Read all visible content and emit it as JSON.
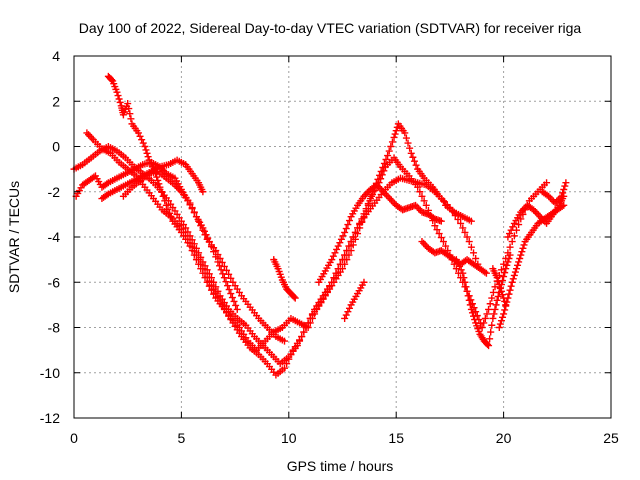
{
  "chart_data": {
    "type": "scatter",
    "title": "Day 100 of 2022, Sidereal Day-to-day VTEC variation (SDTVAR) for receiver riga",
    "xlabel": "GPS time / hours",
    "ylabel": "SDTVAR / TECUs",
    "xlim": [
      0,
      25
    ],
    "ylim": [
      -12,
      4
    ],
    "xticks": [
      0,
      5,
      10,
      15,
      20,
      25
    ],
    "yticks": [
      -12,
      -10,
      -8,
      -6,
      -4,
      -2,
      0,
      2,
      4
    ],
    "grid": true,
    "legend": "none",
    "marker": "plus",
    "color": "#ff0000",
    "series": [
      {
        "values": [
          [
            1.6,
            3.1
          ],
          [
            1.8,
            2.9
          ],
          [
            2.0,
            2.4
          ],
          [
            2.2,
            1.8
          ],
          [
            2.3,
            1.4
          ],
          [
            2.5,
            1.9
          ],
          [
            2.7,
            1.0
          ],
          [
            3.0,
            0.6
          ],
          [
            3.3,
            0.0
          ],
          [
            3.5,
            -0.6
          ],
          [
            3.8,
            -1.2
          ],
          [
            4.0,
            -1.8
          ],
          [
            4.3,
            -2.6
          ],
          [
            4.6,
            -3.3
          ],
          [
            5.0,
            -3.8
          ],
          [
            5.4,
            -4.4
          ],
          [
            5.8,
            -5.2
          ],
          [
            6.2,
            -6.0
          ],
          [
            6.6,
            -6.7
          ],
          [
            7.0,
            -7.2
          ],
          [
            7.4,
            -7.8
          ],
          [
            7.8,
            -8.4
          ],
          [
            8.2,
            -8.9
          ],
          [
            8.6,
            -9.2
          ],
          [
            9.0,
            -9.6
          ],
          [
            9.4,
            -10.1
          ],
          [
            9.8,
            -9.8
          ],
          [
            10.2,
            -9.0
          ],
          [
            10.6,
            -8.4
          ],
          [
            11.0,
            -7.6
          ],
          [
            11.4,
            -7.0
          ],
          [
            11.8,
            -6.4
          ],
          [
            12.2,
            -5.6
          ],
          [
            12.6,
            -4.8
          ],
          [
            13.0,
            -4.0
          ],
          [
            13.4,
            -3.2
          ],
          [
            13.8,
            -2.3
          ],
          [
            14.2,
            -1.6
          ],
          [
            14.5,
            -0.9
          ],
          [
            14.9,
            -0.5
          ],
          [
            15.2,
            -0.9
          ],
          [
            15.6,
            -1.3
          ],
          [
            16.0,
            -1.8
          ],
          [
            16.4,
            -2.6
          ],
          [
            16.8,
            -3.5
          ],
          [
            17.2,
            -4.2
          ],
          [
            17.6,
            -5.0
          ],
          [
            18.0,
            -5.8
          ],
          [
            18.4,
            -6.6
          ],
          [
            18.7,
            -7.3
          ],
          [
            19.0,
            -8.0
          ],
          [
            19.3,
            -7.2
          ],
          [
            19.6,
            -6.2
          ],
          [
            20.0,
            -5.2
          ],
          [
            20.4,
            -4.2
          ],
          [
            20.8,
            -3.2
          ],
          [
            21.2,
            -2.4
          ],
          [
            21.6,
            -2.0
          ],
          [
            22.0,
            -1.6
          ]
        ]
      },
      {
        "values": [
          [
            0.6,
            0.6
          ],
          [
            0.9,
            0.3
          ],
          [
            1.3,
            -0.1
          ],
          [
            1.7,
            -0.3
          ],
          [
            2.1,
            -0.7
          ],
          [
            2.5,
            -1.0
          ],
          [
            2.9,
            -1.3
          ],
          [
            3.3,
            -1.8
          ],
          [
            3.7,
            -2.3
          ],
          [
            4.1,
            -2.8
          ],
          [
            4.5,
            -3.1
          ],
          [
            4.9,
            -3.5
          ],
          [
            5.3,
            -4.1
          ],
          [
            5.7,
            -4.8
          ],
          [
            6.1,
            -5.6
          ],
          [
            6.5,
            -6.3
          ],
          [
            6.9,
            -7.0
          ],
          [
            7.3,
            -7.6
          ],
          [
            7.7,
            -8.0
          ],
          [
            8.1,
            -8.6
          ],
          [
            8.5,
            -9.0
          ],
          [
            8.9,
            -8.6
          ],
          [
            9.3,
            -8.2
          ],
          [
            9.7,
            -8.0
          ],
          [
            10.1,
            -7.6
          ],
          [
            10.5,
            -7.8
          ],
          [
            10.9,
            -8.0
          ],
          [
            11.3,
            -7.2
          ],
          [
            11.7,
            -6.6
          ],
          [
            12.1,
            -6.0
          ],
          [
            12.5,
            -5.4
          ],
          [
            12.9,
            -4.6
          ],
          [
            13.3,
            -3.6
          ],
          [
            13.7,
            -2.6
          ],
          [
            14.0,
            -1.8
          ],
          [
            14.3,
            -1.1
          ],
          [
            14.6,
            -0.4
          ],
          [
            14.9,
            0.4
          ],
          [
            15.1,
            1.0
          ],
          [
            15.4,
            0.6
          ],
          [
            15.7,
            -0.3
          ],
          [
            16.0,
            -1.0
          ],
          [
            16.3,
            -1.4
          ],
          [
            16.7,
            -1.8
          ],
          [
            17.0,
            -2.2
          ],
          [
            17.5,
            -2.7
          ],
          [
            18.0,
            -3.4
          ],
          [
            18.4,
            -4.2
          ],
          [
            18.8,
            -5.2
          ]
        ]
      },
      {
        "values": [
          [
            0.0,
            -1.0
          ],
          [
            0.4,
            -0.8
          ],
          [
            0.8,
            -0.5
          ],
          [
            1.2,
            -0.2
          ],
          [
            1.6,
            0.0
          ],
          [
            2.0,
            -0.2
          ],
          [
            2.4,
            -0.5
          ],
          [
            2.8,
            -0.9
          ],
          [
            3.2,
            -1.2
          ],
          [
            3.6,
            -1.5
          ],
          [
            4.0,
            -1.9
          ],
          [
            4.4,
            -2.4
          ],
          [
            4.8,
            -3.0
          ],
          [
            5.2,
            -3.6
          ],
          [
            5.6,
            -4.3
          ],
          [
            6.0,
            -5.1
          ],
          [
            6.4,
            -5.8
          ],
          [
            6.8,
            -6.6
          ],
          [
            7.2,
            -7.2
          ],
          [
            7.6,
            -7.6
          ],
          [
            8.0,
            -7.9
          ],
          [
            8.4,
            -8.4
          ],
          [
            8.8,
            -8.8
          ],
          [
            9.2,
            -9.2
          ],
          [
            9.6,
            -9.6
          ],
          [
            10.0,
            -9.3
          ],
          [
            10.4,
            -8.8
          ],
          [
            10.8,
            -8.0
          ],
          [
            11.2,
            -7.2
          ],
          [
            11.6,
            -6.6
          ],
          [
            12.0,
            -6.0
          ],
          [
            12.4,
            -5.2
          ],
          [
            12.8,
            -4.4
          ],
          [
            13.2,
            -3.6
          ],
          [
            13.6,
            -3.0
          ],
          [
            14.0,
            -2.5
          ],
          [
            14.4,
            -2.0
          ],
          [
            14.8,
            -1.6
          ],
          [
            15.2,
            -1.4
          ],
          [
            15.6,
            -1.5
          ],
          [
            16.0,
            -1.6
          ],
          [
            16.4,
            -1.7
          ],
          [
            16.8,
            -2.0
          ],
          [
            17.2,
            -2.4
          ]
        ]
      },
      {
        "values": [
          [
            0.1,
            -2.2
          ],
          [
            0.4,
            -1.7
          ],
          [
            0.7,
            -1.5
          ],
          [
            1.0,
            -1.3
          ],
          [
            1.3,
            -1.8
          ],
          [
            1.6,
            -1.6
          ],
          [
            2.0,
            -1.4
          ],
          [
            2.4,
            -1.2
          ],
          [
            2.8,
            -1.0
          ],
          [
            3.2,
            -0.8
          ],
          [
            3.6,
            -0.7
          ],
          [
            4.0,
            -0.9
          ],
          [
            4.3,
            -1.2
          ],
          [
            4.7,
            -1.4
          ],
          [
            5.0,
            -1.9
          ],
          [
            5.3,
            -2.4
          ],
          [
            5.7,
            -3.1
          ],
          [
            6.0,
            -3.6
          ],
          [
            6.3,
            -4.2
          ],
          [
            6.7,
            -5.1
          ],
          [
            7.0,
            -5.8
          ],
          [
            7.3,
            -6.5
          ],
          [
            7.6,
            -7.2
          ]
        ]
      },
      {
        "values": [
          [
            1.3,
            -2.3
          ],
          [
            1.6,
            -2.1
          ],
          [
            2.0,
            -1.9
          ],
          [
            2.4,
            -1.7
          ],
          [
            2.8,
            -1.5
          ],
          [
            3.2,
            -1.3
          ],
          [
            3.6,
            -1.1
          ],
          [
            4.0,
            -0.9
          ],
          [
            4.4,
            -0.8
          ],
          [
            4.8,
            -0.6
          ],
          [
            5.2,
            -0.8
          ],
          [
            5.5,
            -1.2
          ],
          [
            5.8,
            -1.6
          ],
          [
            6.0,
            -2.0
          ]
        ]
      },
      {
        "values": [
          [
            2.3,
            -2.2
          ],
          [
            2.7,
            -1.8
          ],
          [
            3.1,
            -1.5
          ],
          [
            3.5,
            -1.2
          ],
          [
            3.9,
            -1.1
          ],
          [
            4.3,
            -1.4
          ],
          [
            4.7,
            -1.7
          ],
          [
            5.0,
            -2.0
          ],
          [
            5.4,
            -2.5
          ],
          [
            5.8,
            -3.3
          ],
          [
            6.2,
            -4.1
          ],
          [
            6.6,
            -4.6
          ],
          [
            7.0,
            -5.3
          ],
          [
            7.4,
            -6.0
          ],
          [
            7.8,
            -6.6
          ],
          [
            8.2,
            -7.1
          ],
          [
            8.6,
            -7.6
          ],
          [
            9.0,
            -8.0
          ],
          [
            9.4,
            -8.4
          ],
          [
            9.8,
            -8.6
          ]
        ]
      },
      {
        "values": [
          [
            9.3,
            -5.0
          ],
          [
            9.5,
            -5.4
          ],
          [
            9.7,
            -5.9
          ],
          [
            9.9,
            -6.3
          ],
          [
            10.1,
            -6.5
          ],
          [
            10.3,
            -6.7
          ]
        ]
      },
      {
        "values": [
          [
            11.4,
            -6.0
          ],
          [
            11.7,
            -5.5
          ],
          [
            12.0,
            -5.0
          ],
          [
            12.3,
            -4.4
          ],
          [
            12.6,
            -3.8
          ],
          [
            12.9,
            -3.1
          ],
          [
            13.2,
            -2.6
          ],
          [
            13.5,
            -2.2
          ],
          [
            13.8,
            -1.9
          ],
          [
            14.1,
            -1.7
          ],
          [
            14.4,
            -2.0
          ],
          [
            14.7,
            -2.3
          ],
          [
            15.0,
            -2.6
          ],
          [
            15.3,
            -2.8
          ],
          [
            15.6,
            -2.7
          ],
          [
            15.9,
            -2.6
          ],
          [
            16.2,
            -2.9
          ],
          [
            16.5,
            -3.0
          ],
          [
            16.8,
            -3.2
          ],
          [
            17.1,
            -3.3
          ]
        ]
      },
      {
        "values": [
          [
            12.6,
            -7.6
          ],
          [
            12.9,
            -7.0
          ],
          [
            13.2,
            -6.5
          ],
          [
            13.5,
            -6.0
          ]
        ]
      },
      {
        "values": [
          [
            16.2,
            -4.2
          ],
          [
            16.5,
            -4.5
          ],
          [
            16.8,
            -4.7
          ],
          [
            17.1,
            -4.6
          ],
          [
            17.4,
            -4.8
          ],
          [
            17.7,
            -5.0
          ],
          [
            18.0,
            -5.2
          ],
          [
            18.3,
            -5.0
          ],
          [
            18.6,
            -5.2
          ],
          [
            18.9,
            -5.4
          ],
          [
            19.2,
            -5.6
          ]
        ]
      },
      {
        "values": [
          [
            17.3,
            -2.6
          ],
          [
            17.7,
            -2.9
          ],
          [
            18.1,
            -3.1
          ],
          [
            18.5,
            -3.3
          ]
        ]
      },
      {
        "values": [
          [
            17.8,
            -5.0
          ],
          [
            18.1,
            -5.6
          ],
          [
            18.3,
            -6.4
          ],
          [
            18.5,
            -7.2
          ],
          [
            18.7,
            -7.8
          ],
          [
            18.9,
            -8.3
          ],
          [
            19.1,
            -8.6
          ],
          [
            19.3,
            -8.8
          ],
          [
            19.5,
            -7.6
          ],
          [
            19.7,
            -6.8
          ],
          [
            19.9,
            -6.1
          ],
          [
            20.1,
            -5.4
          ],
          [
            20.3,
            -4.8
          ]
        ]
      },
      {
        "values": [
          [
            19.5,
            -5.4
          ],
          [
            19.7,
            -5.8
          ],
          [
            19.9,
            -6.4
          ],
          [
            20.1,
            -7.0
          ]
        ]
      },
      {
        "values": [
          [
            19.8,
            -8.0
          ],
          [
            20.0,
            -7.4
          ],
          [
            20.2,
            -6.7
          ],
          [
            20.4,
            -6.0
          ],
          [
            20.6,
            -5.4
          ],
          [
            20.8,
            -4.8
          ],
          [
            21.0,
            -4.2
          ],
          [
            21.3,
            -3.8
          ],
          [
            21.6,
            -3.4
          ],
          [
            21.9,
            -3.2
          ],
          [
            22.2,
            -3.0
          ],
          [
            22.5,
            -2.8
          ],
          [
            22.8,
            -2.6
          ]
        ]
      },
      {
        "values": [
          [
            20.2,
            -4.0
          ],
          [
            20.5,
            -3.4
          ],
          [
            20.8,
            -2.9
          ],
          [
            21.1,
            -2.6
          ],
          [
            21.4,
            -2.8
          ],
          [
            21.7,
            -3.1
          ],
          [
            22.0,
            -3.4
          ],
          [
            22.3,
            -3.0
          ],
          [
            22.6,
            -2.6
          ],
          [
            22.8,
            -2.2
          ]
        ]
      },
      {
        "values": [
          [
            21.8,
            -2.0
          ],
          [
            22.1,
            -2.2
          ],
          [
            22.4,
            -2.5
          ],
          [
            22.7,
            -2.2
          ],
          [
            22.9,
            -1.6
          ]
        ]
      }
    ]
  }
}
